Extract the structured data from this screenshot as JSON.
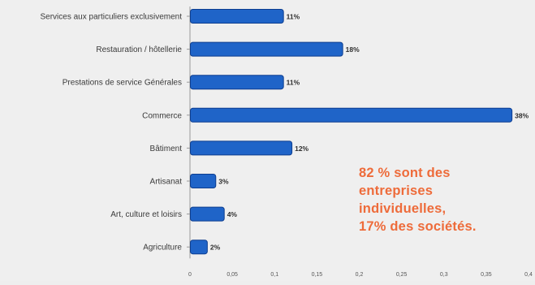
{
  "chart_data": {
    "type": "bar",
    "orientation": "horizontal",
    "categories": [
      "Services aux particuliers exclusivement",
      "Restauration / hôtellerie",
      "Prestations de service Générales",
      "Commerce",
      "Bâtiment",
      "Artisanat",
      "Art, culture et loisirs",
      "Agriculture"
    ],
    "values": [
      0.11,
      0.18,
      0.11,
      0.38,
      0.12,
      0.03,
      0.04,
      0.02
    ],
    "data_labels": [
      "11%",
      "18%",
      "11%",
      "38%",
      "12%",
      "3%",
      "4%",
      "2%"
    ],
    "xticks": [
      "0",
      "0,05",
      "0,1",
      "0,15",
      "0,2",
      "0,25",
      "0,3",
      "0,35",
      "0,4"
    ],
    "xlim": [
      0,
      0.4
    ],
    "grid": false,
    "bar_color": "#1f64c8",
    "bar_edge_color": "#0d3d8f"
  },
  "annotation": {
    "lines": [
      "82 % sont des",
      "entreprises",
      "individuelles,",
      "17% des sociétés."
    ],
    "color": "#ee6b3a"
  }
}
